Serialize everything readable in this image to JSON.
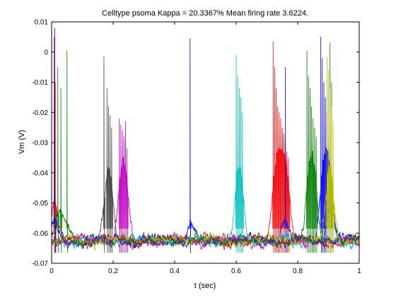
{
  "chart_data": {
    "type": "line",
    "title": "Celltype psoma Kappa = 20.3367% Mean firing rate 3.6224.",
    "xlabel": "t (sec)",
    "ylabel": "Vm (V)",
    "xlim": [
      0,
      1
    ],
    "ylim": [
      -0.07,
      0.01
    ],
    "grid": false,
    "xticks": [
      0,
      0.2,
      0.4,
      0.6,
      0.8,
      1
    ],
    "xtick_labels": [
      "0",
      "0.2",
      "0.4",
      "0.6",
      "0.8",
      "1"
    ],
    "yticks": [
      0.01,
      0,
      -0.01,
      -0.02,
      -0.03,
      -0.04,
      -0.05,
      -0.06,
      -0.07
    ],
    "ytick_labels": [
      "0.01",
      "0",
      "-0.01",
      "-0.02",
      "-0.03",
      "-0.04",
      "-0.05",
      "-0.06",
      "-0.07"
    ],
    "resting_potential": -0.0625,
    "series": [
      {
        "color": "#ff0000",
        "spike_times": [
          0.008,
          0.012,
          0.72,
          0.725,
          0.73,
          0.735,
          0.74,
          0.745,
          0.75,
          0.755,
          0.76,
          0.765,
          0.77
        ],
        "spike_peaks": [
          0.005,
          -0.01,
          0.0035,
          -0.005,
          -0.012,
          -0.018,
          -0.02,
          -0.022,
          -0.025,
          -0.027,
          -0.03,
          -0.033,
          -0.035
        ]
      },
      {
        "color": "#0000ff",
        "spike_times": [
          0.01,
          0.45,
          0.76,
          0.875,
          0.88,
          0.885,
          0.89,
          0.895,
          0.9,
          0.905,
          0.91
        ],
        "spike_peaks": [
          0.008,
          0.0045,
          -0.005,
          0.005,
          -0.002,
          -0.01,
          -0.015,
          -0.02,
          -0.028,
          -0.033,
          -0.04
        ]
      },
      {
        "color": "#007f00",
        "spike_times": [
          0.02,
          0.03,
          0.05,
          0.83,
          0.835,
          0.84,
          0.845,
          0.85,
          0.855,
          0.86,
          0.905,
          0.91
        ],
        "spike_peaks": [
          -0.005,
          -0.012,
          0.0005,
          0.0005,
          -0.008,
          -0.012,
          -0.018,
          -0.022,
          -0.025,
          -0.028,
          0.003,
          -0.01
        ]
      },
      {
        "color": "#00bfbf",
        "spike_times": [
          0.6,
          0.605,
          0.61,
          0.615,
          0.62
        ],
        "spike_peaks": [
          -0.001,
          -0.008,
          -0.012,
          -0.015,
          -0.02
        ]
      },
      {
        "color": "#bf00bf",
        "spike_times": [
          0.22,
          0.225,
          0.23,
          0.235,
          0.24,
          0.245
        ],
        "spike_peaks": [
          -0.022,
          -0.024,
          -0.026,
          -0.028,
          -0.023,
          -0.032
        ]
      },
      {
        "color": "#bfbf00",
        "spike_times": [
          0.895,
          0.9,
          0.905,
          0.91,
          0.915
        ],
        "spike_peaks": [
          -0.0015,
          -0.006,
          -0.012,
          -0.018,
          -0.023
        ]
      },
      {
        "color": "#3f3f3f",
        "spike_times": [
          0.17,
          0.18,
          0.185,
          0.19,
          0.195
        ],
        "spike_peaks": [
          -0.0015,
          -0.012,
          -0.018,
          -0.021,
          -0.025
        ]
      }
    ]
  }
}
